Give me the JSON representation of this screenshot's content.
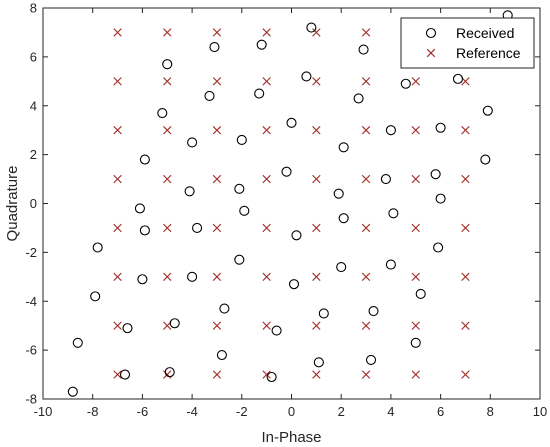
{
  "chart_data": {
    "type": "scatter",
    "xlabel": "In-Phase",
    "ylabel": "Quadrature",
    "xlim": [
      -10,
      10
    ],
    "ylim": [
      -8,
      8
    ],
    "xticks": [
      -10,
      -8,
      -6,
      -4,
      -2,
      0,
      2,
      4,
      6,
      8,
      10
    ],
    "yticks": [
      -8,
      -6,
      -4,
      -2,
      0,
      2,
      4,
      6,
      8
    ],
    "grid": false,
    "legend_position": "top-right",
    "colors": {
      "received": "#000000",
      "reference": "#a2302a",
      "axis": "#262626"
    },
    "series": [
      {
        "name": "Received",
        "marker": "circle",
        "points": [
          [
            8.7,
            7.7
          ],
          [
            0.8,
            7.2
          ],
          [
            -3.1,
            6.4
          ],
          [
            -1.2,
            6.5
          ],
          [
            2.9,
            6.3
          ],
          [
            -5.0,
            5.7
          ],
          [
            0.6,
            5.2
          ],
          [
            6.7,
            5.1
          ],
          [
            4.6,
            4.9
          ],
          [
            8.6,
            5.8
          ],
          [
            -3.3,
            4.4
          ],
          [
            -1.3,
            4.5
          ],
          [
            2.7,
            4.3
          ],
          [
            -5.2,
            3.7
          ],
          [
            7.9,
            3.8
          ],
          [
            0.0,
            3.3
          ],
          [
            4.0,
            3.0
          ],
          [
            6.0,
            3.1
          ],
          [
            -2.0,
            2.6
          ],
          [
            -4.0,
            2.5
          ],
          [
            2.1,
            2.3
          ],
          [
            -5.9,
            1.8
          ],
          [
            7.8,
            1.8
          ],
          [
            -0.2,
            1.3
          ],
          [
            3.8,
            1.0
          ],
          [
            5.8,
            1.2
          ],
          [
            -4.1,
            0.5
          ],
          [
            -2.1,
            0.6
          ],
          [
            1.9,
            0.4
          ],
          [
            6.0,
            0.2
          ],
          [
            -6.1,
            -0.2
          ],
          [
            -1.9,
            -0.3
          ],
          [
            4.1,
            -0.4
          ],
          [
            2.1,
            -0.6
          ],
          [
            -3.8,
            -1.0
          ],
          [
            -5.9,
            -1.1
          ],
          [
            0.2,
            -1.3
          ],
          [
            -7.8,
            -1.8
          ],
          [
            5.9,
            -1.8
          ],
          [
            -2.1,
            -2.3
          ],
          [
            4.0,
            -2.5
          ],
          [
            2.0,
            -2.6
          ],
          [
            -6.0,
            -3.1
          ],
          [
            -4.0,
            -3.0
          ],
          [
            0.1,
            -3.3
          ],
          [
            -7.9,
            -3.8
          ],
          [
            5.2,
            -3.7
          ],
          [
            3.3,
            -4.4
          ],
          [
            -2.7,
            -4.3
          ],
          [
            1.3,
            -4.5
          ],
          [
            -6.6,
            -5.1
          ],
          [
            -4.7,
            -4.9
          ],
          [
            -0.6,
            -5.2
          ],
          [
            -8.6,
            -5.7
          ],
          [
            5.0,
            -5.7
          ],
          [
            -2.8,
            -6.2
          ],
          [
            3.2,
            -6.4
          ],
          [
            1.1,
            -6.5
          ],
          [
            -6.7,
            -7.0
          ],
          [
            -4.9,
            -6.9
          ],
          [
            -8.8,
            -7.7
          ],
          [
            -0.8,
            -7.1
          ]
        ]
      },
      {
        "name": "Reference",
        "marker": "x",
        "levels": [
          -7,
          -5,
          -3,
          -1,
          1,
          3,
          5,
          7
        ]
      }
    ]
  }
}
